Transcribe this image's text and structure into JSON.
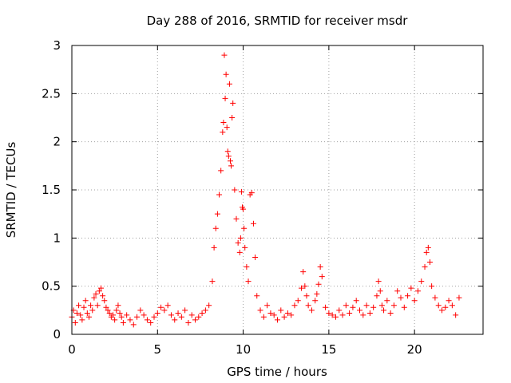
{
  "chart_data": {
    "type": "scatter",
    "title": "Day 288 of 2016, SRMTID for receiver msdr",
    "xlabel": "GPS time / hours",
    "ylabel": "SRMTID / TECUs",
    "xlim": [
      0,
      24
    ],
    "ylim": [
      0,
      3
    ],
    "xticks": [
      0,
      5,
      10,
      15,
      20
    ],
    "xtick_labels": [
      "0",
      "5",
      "10",
      "15",
      "20"
    ],
    "yticks": [
      0,
      0.5,
      1,
      1.5,
      2,
      2.5,
      3
    ],
    "ytick_labels": [
      "0",
      "0.5",
      "1",
      "1.5",
      "2",
      "2.5",
      "3"
    ],
    "grid": true,
    "marker": "+",
    "color": "#ff0000",
    "series": [
      {
        "name": "SRMTID",
        "x": [
          0.0,
          0.1,
          0.2,
          0.3,
          0.4,
          0.5,
          0.6,
          0.7,
          0.8,
          0.9,
          1.0,
          1.1,
          1.2,
          1.3,
          1.4,
          1.5,
          1.6,
          1.7,
          1.8,
          1.9,
          2.0,
          2.1,
          2.2,
          2.3,
          2.4,
          2.5,
          2.6,
          2.7,
          2.8,
          2.9,
          3.0,
          3.2,
          3.4,
          3.6,
          3.8,
          4.0,
          4.2,
          4.4,
          4.6,
          4.8,
          5.0,
          5.2,
          5.4,
          5.6,
          5.8,
          6.0,
          6.2,
          6.4,
          6.6,
          6.8,
          7.0,
          7.2,
          7.4,
          7.6,
          7.8,
          8.0,
          8.2,
          8.3,
          8.4,
          8.5,
          8.6,
          8.7,
          8.8,
          8.85,
          8.9,
          8.95,
          9.0,
          9.05,
          9.1,
          9.15,
          9.2,
          9.25,
          9.3,
          9.35,
          9.4,
          9.5,
          9.6,
          9.7,
          9.8,
          9.85,
          9.9,
          9.95,
          10.0,
          10.05,
          10.1,
          10.2,
          10.3,
          10.4,
          10.5,
          10.6,
          10.7,
          10.8,
          11.0,
          11.2,
          11.4,
          11.6,
          11.8,
          12.0,
          12.2,
          12.4,
          12.6,
          12.8,
          13.0,
          13.2,
          13.4,
          13.5,
          13.6,
          13.7,
          13.8,
          14.0,
          14.2,
          14.3,
          14.4,
          14.5,
          14.6,
          14.8,
          15.0,
          15.2,
          15.4,
          15.6,
          15.8,
          16.0,
          16.2,
          16.4,
          16.6,
          16.8,
          17.0,
          17.2,
          17.4,
          17.6,
          17.8,
          17.9,
          18.0,
          18.1,
          18.2,
          18.4,
          18.6,
          18.8,
          19.0,
          19.2,
          19.4,
          19.6,
          19.8,
          20.0,
          20.2,
          20.4,
          20.6,
          20.7,
          20.8,
          20.9,
          21.0,
          21.2,
          21.4,
          21.6,
          21.8,
          22.0,
          22.2,
          22.4,
          22.6
        ],
        "y": [
          0.18,
          0.25,
          0.12,
          0.22,
          0.3,
          0.2,
          0.15,
          0.28,
          0.35,
          0.22,
          0.18,
          0.3,
          0.25,
          0.38,
          0.42,
          0.3,
          0.45,
          0.48,
          0.4,
          0.35,
          0.28,
          0.25,
          0.22,
          0.18,
          0.2,
          0.15,
          0.25,
          0.3,
          0.22,
          0.18,
          0.12,
          0.2,
          0.15,
          0.1,
          0.18,
          0.25,
          0.2,
          0.15,
          0.12,
          0.18,
          0.22,
          0.28,
          0.25,
          0.3,
          0.2,
          0.15,
          0.22,
          0.18,
          0.25,
          0.12,
          0.2,
          0.15,
          0.18,
          0.22,
          0.25,
          0.3,
          0.55,
          0.9,
          1.1,
          1.25,
          1.45,
          1.7,
          2.1,
          2.2,
          2.9,
          2.45,
          2.7,
          2.15,
          1.9,
          1.85,
          2.6,
          1.8,
          1.75,
          2.25,
          2.4,
          1.5,
          1.2,
          0.95,
          0.85,
          1.0,
          1.48,
          1.32,
          1.3,
          1.1,
          0.9,
          0.7,
          0.55,
          1.45,
          1.47,
          1.15,
          0.8,
          0.4,
          0.25,
          0.18,
          0.3,
          0.22,
          0.2,
          0.15,
          0.25,
          0.18,
          0.22,
          0.2,
          0.3,
          0.35,
          0.48,
          0.65,
          0.5,
          0.4,
          0.3,
          0.25,
          0.35,
          0.42,
          0.52,
          0.7,
          0.6,
          0.28,
          0.22,
          0.2,
          0.18,
          0.25,
          0.2,
          0.3,
          0.22,
          0.28,
          0.35,
          0.25,
          0.2,
          0.3,
          0.22,
          0.28,
          0.4,
          0.55,
          0.45,
          0.3,
          0.25,
          0.35,
          0.22,
          0.3,
          0.45,
          0.38,
          0.28,
          0.4,
          0.48,
          0.35,
          0.45,
          0.55,
          0.7,
          0.85,
          0.9,
          0.75,
          0.5,
          0.38,
          0.3,
          0.25,
          0.28,
          0.35,
          0.3,
          0.2,
          0.38
        ]
      }
    ]
  }
}
